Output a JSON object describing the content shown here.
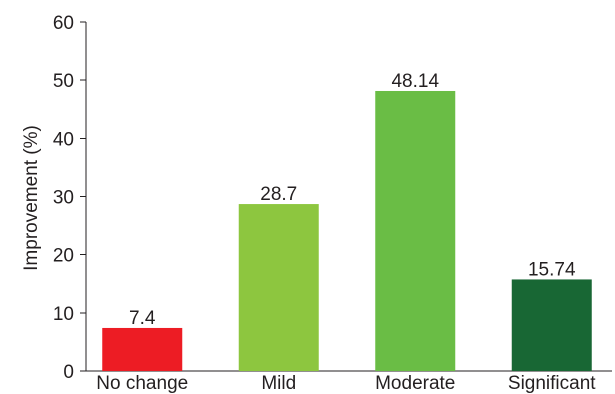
{
  "chart_data": {
    "type": "bar",
    "title": "",
    "xlabel": "",
    "ylabel": "Improvement (%)",
    "categories": [
      "No change",
      "Mild",
      "Moderate",
      "Significant"
    ],
    "values": [
      7.4,
      28.7,
      48.14,
      15.74
    ],
    "value_labels": [
      "7.4",
      "28.7",
      "48.14",
      "15.74"
    ],
    "bar_colors": [
      "#ed1c24",
      "#8dc63f",
      "#6abd45",
      "#186734"
    ],
    "ylim": [
      0,
      60
    ],
    "yticks": [
      0,
      10,
      20,
      30,
      40,
      50,
      60
    ],
    "grid": false,
    "legend": "none"
  }
}
